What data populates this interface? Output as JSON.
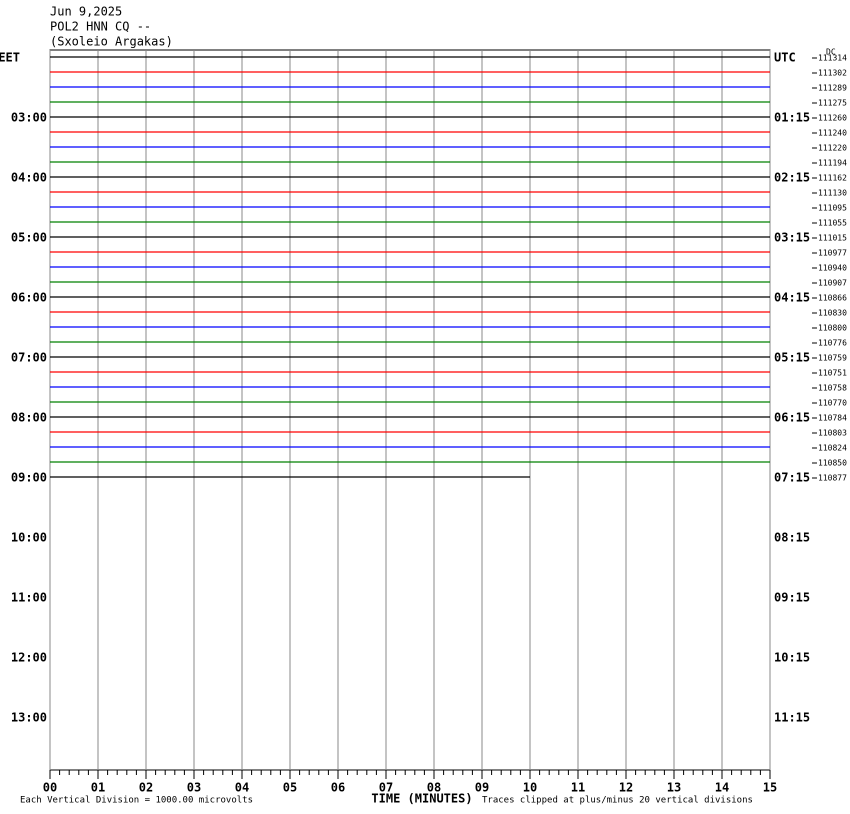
{
  "chart_data": {
    "type": "helicorder",
    "header": [
      "Jun 9,2025",
      "POL2 HNN CQ --",
      "(Sxoleio Argakas)"
    ],
    "left_labels": [
      "EET",
      "03:00",
      "04:00",
      "05:00",
      "06:00",
      "07:00",
      "08:00",
      "09:00",
      "10:00",
      "11:00",
      "12:00",
      "13:00"
    ],
    "right_labels": [
      "UTC",
      "01:15",
      "02:15",
      "03:15",
      "04:15",
      "05:15",
      "06:15",
      "07:15",
      "08:15",
      "09:15",
      "10:15",
      "11:15"
    ],
    "dc_label": "DC",
    "dc_values": [
      111314,
      111302,
      111289,
      111275,
      111260,
      111240,
      111220,
      111194,
      111162,
      111130,
      111095,
      111055,
      111015,
      110977,
      110940,
      110907,
      110866,
      110830,
      110800,
      110776,
      110759,
      110751,
      110758,
      110770,
      110784,
      110803,
      110824,
      110850,
      110877
    ],
    "trace_colors": [
      "#000000",
      "#ff0000",
      "#0000ff",
      "#008000"
    ],
    "last_trace_end": 10,
    "xlim": [
      0,
      15
    ],
    "xticks": [
      {
        "value": 0,
        "label": "00"
      },
      {
        "value": 1,
        "label": "01"
      },
      {
        "value": 2,
        "label": "02"
      },
      {
        "value": 3,
        "label": "03"
      },
      {
        "value": 4,
        "label": "04"
      },
      {
        "value": 5,
        "label": "05"
      },
      {
        "value": 6,
        "label": "06"
      },
      {
        "value": 7,
        "label": "07"
      },
      {
        "value": 8,
        "label": "08"
      },
      {
        "value": 9,
        "label": "09"
      },
      {
        "value": 10,
        "label": "10"
      },
      {
        "value": 11,
        "label": "11"
      },
      {
        "value": 12,
        "label": "12"
      },
      {
        "value": 13,
        "label": "13"
      },
      {
        "value": 14,
        "label": "14"
      },
      {
        "value": 15,
        "label": "15"
      }
    ],
    "xlabel": "TIME (MINUTES)",
    "scale_note": "Each Vertical Division = 1000.00 microvolts",
    "clip_note": "Traces clipped at plus/minus 20 vertical divisions"
  }
}
